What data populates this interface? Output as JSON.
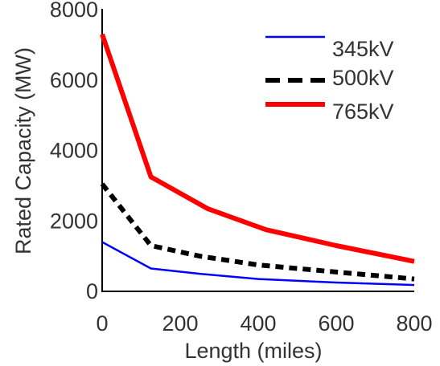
{
  "chart_data": {
    "type": "line",
    "xlabel": "Length (miles)",
    "ylabel": "Rated Capacity (MW)",
    "xlim": [
      0,
      800
    ],
    "ylim": [
      0,
      8000
    ],
    "x_ticks": [
      "0",
      "200",
      "400",
      "600",
      "800"
    ],
    "y_ticks": [
      "0",
      "2000",
      "4000",
      "6000",
      "8000"
    ],
    "grid": false,
    "legend_position": "top-right",
    "series": [
      {
        "name": "345kV",
        "color": "#0000ff",
        "style": "solid",
        "x": [
          0,
          125,
          250,
          400,
          600,
          800
        ],
        "y": [
          1400,
          650,
          500,
          350,
          250,
          180
        ]
      },
      {
        "name": "500kV",
        "color": "#000000",
        "style": "dashed",
        "x": [
          0,
          125,
          250,
          400,
          600,
          800
        ],
        "y": [
          3050,
          1300,
          1000,
          750,
          550,
          350
        ]
      },
      {
        "name": "765kV",
        "color": "#ff0000",
        "style": "solid",
        "x": [
          0,
          125,
          270,
          420,
          600,
          800
        ],
        "y": [
          7300,
          3250,
          2350,
          1750,
          1300,
          850
        ]
      }
    ]
  }
}
